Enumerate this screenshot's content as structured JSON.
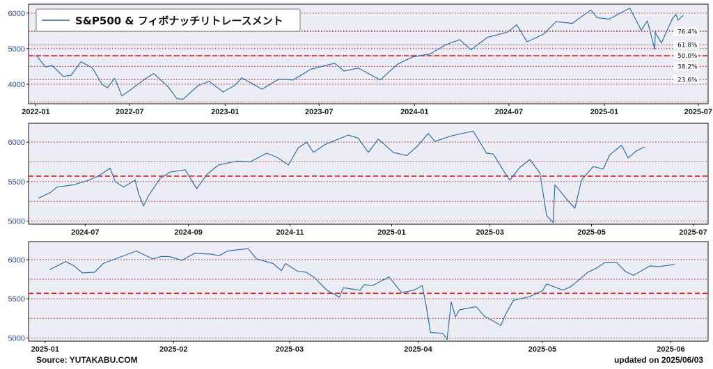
{
  "legend_label": "S&P500 & フィボナッチリトレースメント",
  "source": "Source: YUTAKABU.COM",
  "updated": "updated on 2025/06/03",
  "colors": {
    "line": "#2f6fa5",
    "plot_bg": "#ececf4",
    "fib": "#e01818",
    "tick_y": "#2a4a80"
  },
  "chart_data": [
    {
      "type": "line",
      "series": [
        {
          "name": "S&P500",
          "values": [
            {
              "x": "2022-01-03",
              "y": 4790
            },
            {
              "x": "2022-01-20",
              "y": 4480
            },
            {
              "x": "2022-02-01",
              "y": 4530
            },
            {
              "x": "2022-02-23",
              "y": 4220
            },
            {
              "x": "2022-03-10",
              "y": 4250
            },
            {
              "x": "2022-03-29",
              "y": 4630
            },
            {
              "x": "2022-04-20",
              "y": 4460
            },
            {
              "x": "2022-05-09",
              "y": 3990
            },
            {
              "x": "2022-05-19",
              "y": 3900
            },
            {
              "x": "2022-06-02",
              "y": 4170
            },
            {
              "x": "2022-06-16",
              "y": 3670
            },
            {
              "x": "2022-07-08",
              "y": 3900
            },
            {
              "x": "2022-07-29",
              "y": 4130
            },
            {
              "x": "2022-08-16",
              "y": 4300
            },
            {
              "x": "2022-09-13",
              "y": 3930
            },
            {
              "x": "2022-09-30",
              "y": 3590
            },
            {
              "x": "2022-10-12",
              "y": 3580
            },
            {
              "x": "2022-11-10",
              "y": 3960
            },
            {
              "x": "2022-12-01",
              "y": 4080
            },
            {
              "x": "2022-12-28",
              "y": 3780
            },
            {
              "x": "2023-01-20",
              "y": 3970
            },
            {
              "x": "2023-02-02",
              "y": 4180
            },
            {
              "x": "2023-03-13",
              "y": 3860
            },
            {
              "x": "2023-04-14",
              "y": 4140
            },
            {
              "x": "2023-05-12",
              "y": 4120
            },
            {
              "x": "2023-06-15",
              "y": 4420
            },
            {
              "x": "2023-07-31",
              "y": 4590
            },
            {
              "x": "2023-08-18",
              "y": 4370
            },
            {
              "x": "2023-09-15",
              "y": 4450
            },
            {
              "x": "2023-10-27",
              "y": 4120
            },
            {
              "x": "2023-11-30",
              "y": 4570
            },
            {
              "x": "2023-12-29",
              "y": 4770
            },
            {
              "x": "2024-01-31",
              "y": 4850
            },
            {
              "x": "2024-02-29",
              "y": 5100
            },
            {
              "x": "2024-03-28",
              "y": 5250
            },
            {
              "x": "2024-04-19",
              "y": 4970
            },
            {
              "x": "2024-05-21",
              "y": 5320
            },
            {
              "x": "2024-06-28",
              "y": 5460
            },
            {
              "x": "2024-07-16",
              "y": 5670
            },
            {
              "x": "2024-08-05",
              "y": 5190
            },
            {
              "x": "2024-09-06",
              "y": 5410
            },
            {
              "x": "2024-09-30",
              "y": 5760
            },
            {
              "x": "2024-10-31",
              "y": 5710
            },
            {
              "x": "2024-12-06",
              "y": 6090
            },
            {
              "x": "2024-12-18",
              "y": 5870
            },
            {
              "x": "2025-01-10",
              "y": 5830
            },
            {
              "x": "2025-02-19",
              "y": 6140
            },
            {
              "x": "2025-03-13",
              "y": 5520
            },
            {
              "x": "2025-03-25",
              "y": 5780
            },
            {
              "x": "2025-04-08",
              "y": 4980
            },
            {
              "x": "2025-04-09",
              "y": 5460
            },
            {
              "x": "2025-04-21",
              "y": 5160
            },
            {
              "x": "2025-05-12",
              "y": 5840
            },
            {
              "x": "2025-05-19",
              "y": 5960
            },
            {
              "x": "2025-05-23",
              "y": 5800
            },
            {
              "x": "2025-06-02",
              "y": 5940
            }
          ]
        }
      ],
      "x_range": [
        "2021-12-18",
        "2025-07-20"
      ],
      "ylim": [
        3450,
        6250
      ],
      "xticks": [
        "2022-01",
        "2022-07",
        "2023-01",
        "2023-07",
        "2024-01",
        "2024-07",
        "2025-01",
        "2025-07"
      ],
      "yticks": [
        4000,
        5000,
        6000
      ],
      "fib_levels": [
        {
          "label": "76.4%",
          "value": 5480
        },
        {
          "label": "61.8%",
          "value": 5105
        },
        {
          "label": "50.0%",
          "value": 4800
        },
        {
          "label": "38.2%",
          "value": 4500
        },
        {
          "label": "23.6%",
          "value": 4130
        }
      ],
      "midline": 4800,
      "grid": true,
      "legend": "top-left"
    },
    {
      "type": "line",
      "series": [
        {
          "name": "S&P500",
          "values": [
            {
              "x": "2024-06-03",
              "y": 5290
            },
            {
              "x": "2024-06-10",
              "y": 5360
            },
            {
              "x": "2024-06-14",
              "y": 5430
            },
            {
              "x": "2024-06-24",
              "y": 5460
            },
            {
              "x": "2024-07-02",
              "y": 5510
            },
            {
              "x": "2024-07-08",
              "y": 5560
            },
            {
              "x": "2024-07-16",
              "y": 5670
            },
            {
              "x": "2024-07-19",
              "y": 5500
            },
            {
              "x": "2024-07-24",
              "y": 5430
            },
            {
              "x": "2024-07-31",
              "y": 5520
            },
            {
              "x": "2024-08-02",
              "y": 5350
            },
            {
              "x": "2024-08-05",
              "y": 5190
            },
            {
              "x": "2024-08-08",
              "y": 5320
            },
            {
              "x": "2024-08-15",
              "y": 5540
            },
            {
              "x": "2024-08-21",
              "y": 5620
            },
            {
              "x": "2024-08-30",
              "y": 5650
            },
            {
              "x": "2024-09-06",
              "y": 5410
            },
            {
              "x": "2024-09-12",
              "y": 5590
            },
            {
              "x": "2024-09-19",
              "y": 5710
            },
            {
              "x": "2024-09-30",
              "y": 5760
            },
            {
              "x": "2024-10-08",
              "y": 5750
            },
            {
              "x": "2024-10-18",
              "y": 5860
            },
            {
              "x": "2024-10-24",
              "y": 5810
            },
            {
              "x": "2024-10-31",
              "y": 5710
            },
            {
              "x": "2024-11-06",
              "y": 5930
            },
            {
              "x": "2024-11-11",
              "y": 6000
            },
            {
              "x": "2024-11-15",
              "y": 5870
            },
            {
              "x": "2024-11-22",
              "y": 5970
            },
            {
              "x": "2024-12-06",
              "y": 6090
            },
            {
              "x": "2024-12-12",
              "y": 6050
            },
            {
              "x": "2024-12-18",
              "y": 5870
            },
            {
              "x": "2024-12-24",
              "y": 6040
            },
            {
              "x": "2025-01-02",
              "y": 5870
            },
            {
              "x": "2025-01-10",
              "y": 5830
            },
            {
              "x": "2025-01-16",
              "y": 5940
            },
            {
              "x": "2025-01-23",
              "y": 6110
            },
            {
              "x": "2025-01-27",
              "y": 6010
            },
            {
              "x": "2025-02-06",
              "y": 6080
            },
            {
              "x": "2025-02-19",
              "y": 6140
            },
            {
              "x": "2025-02-27",
              "y": 5860
            },
            {
              "x": "2025-03-03",
              "y": 5850
            },
            {
              "x": "2025-03-10",
              "y": 5610
            },
            {
              "x": "2025-03-13",
              "y": 5520
            },
            {
              "x": "2025-03-19",
              "y": 5680
            },
            {
              "x": "2025-03-25",
              "y": 5780
            },
            {
              "x": "2025-03-31",
              "y": 5610
            },
            {
              "x": "2025-04-04",
              "y": 5070
            },
            {
              "x": "2025-04-08",
              "y": 4980
            },
            {
              "x": "2025-04-09",
              "y": 5460
            },
            {
              "x": "2025-04-16",
              "y": 5280
            },
            {
              "x": "2025-04-21",
              "y": 5160
            },
            {
              "x": "2025-04-25",
              "y": 5520
            },
            {
              "x": "2025-05-02",
              "y": 5690
            },
            {
              "x": "2025-05-08",
              "y": 5660
            },
            {
              "x": "2025-05-12",
              "y": 5840
            },
            {
              "x": "2025-05-19",
              "y": 5960
            },
            {
              "x": "2025-05-23",
              "y": 5800
            },
            {
              "x": "2025-05-28",
              "y": 5890
            },
            {
              "x": "2025-06-02",
              "y": 5940
            }
          ]
        }
      ],
      "x_range": [
        "2024-05-28",
        "2025-07-10"
      ],
      "ylim": [
        4960,
        6240
      ],
      "xticks": [
        "2024-07",
        "2024-09",
        "2024-11",
        "2025-01",
        "2025-03",
        "2025-05",
        "2025-07"
      ],
      "yticks": [
        5000,
        5500,
        6000
      ],
      "midline": 5570,
      "grid": true
    },
    {
      "type": "line",
      "series": [
        {
          "name": "S&P500",
          "values": [
            {
              "x": "2025-01-02",
              "y": 5870
            },
            {
              "x": "2025-01-06",
              "y": 5975
            },
            {
              "x": "2025-01-08",
              "y": 5920
            },
            {
              "x": "2025-01-10",
              "y": 5830
            },
            {
              "x": "2025-01-13",
              "y": 5840
            },
            {
              "x": "2025-01-15",
              "y": 5950
            },
            {
              "x": "2025-01-17",
              "y": 5990
            },
            {
              "x": "2025-01-23",
              "y": 6110
            },
            {
              "x": "2025-01-27",
              "y": 6010
            },
            {
              "x": "2025-01-29",
              "y": 6040
            },
            {
              "x": "2025-01-31",
              "y": 6040
            },
            {
              "x": "2025-02-03",
              "y": 5990
            },
            {
              "x": "2025-02-06",
              "y": 6080
            },
            {
              "x": "2025-02-10",
              "y": 6070
            },
            {
              "x": "2025-02-12",
              "y": 6050
            },
            {
              "x": "2025-02-14",
              "y": 6110
            },
            {
              "x": "2025-02-19",
              "y": 6140
            },
            {
              "x": "2025-02-21",
              "y": 6010
            },
            {
              "x": "2025-02-25",
              "y": 5950
            },
            {
              "x": "2025-02-27",
              "y": 5860
            },
            {
              "x": "2025-02-28",
              "y": 5950
            },
            {
              "x": "2025-03-03",
              "y": 5850
            },
            {
              "x": "2025-03-05",
              "y": 5840
            },
            {
              "x": "2025-03-07",
              "y": 5770
            },
            {
              "x": "2025-03-10",
              "y": 5610
            },
            {
              "x": "2025-03-13",
              "y": 5520
            },
            {
              "x": "2025-03-14",
              "y": 5640
            },
            {
              "x": "2025-03-18",
              "y": 5610
            },
            {
              "x": "2025-03-19",
              "y": 5680
            },
            {
              "x": "2025-03-21",
              "y": 5670
            },
            {
              "x": "2025-03-25",
              "y": 5780
            },
            {
              "x": "2025-03-28",
              "y": 5580
            },
            {
              "x": "2025-03-31",
              "y": 5610
            },
            {
              "x": "2025-04-02",
              "y": 5670
            },
            {
              "x": "2025-04-03",
              "y": 5400
            },
            {
              "x": "2025-04-04",
              "y": 5070
            },
            {
              "x": "2025-04-07",
              "y": 5060
            },
            {
              "x": "2025-04-08",
              "y": 4980
            },
            {
              "x": "2025-04-09",
              "y": 5460
            },
            {
              "x": "2025-04-10",
              "y": 5270
            },
            {
              "x": "2025-04-11",
              "y": 5360
            },
            {
              "x": "2025-04-15",
              "y": 5400
            },
            {
              "x": "2025-04-17",
              "y": 5280
            },
            {
              "x": "2025-04-21",
              "y": 5160
            },
            {
              "x": "2025-04-22",
              "y": 5290
            },
            {
              "x": "2025-04-24",
              "y": 5480
            },
            {
              "x": "2025-04-28",
              "y": 5530
            },
            {
              "x": "2025-05-01",
              "y": 5600
            },
            {
              "x": "2025-05-02",
              "y": 5690
            },
            {
              "x": "2025-05-06",
              "y": 5610
            },
            {
              "x": "2025-05-08",
              "y": 5660
            },
            {
              "x": "2025-05-12",
              "y": 5840
            },
            {
              "x": "2025-05-14",
              "y": 5890
            },
            {
              "x": "2025-05-16",
              "y": 5960
            },
            {
              "x": "2025-05-19",
              "y": 5960
            },
            {
              "x": "2025-05-21",
              "y": 5850
            },
            {
              "x": "2025-05-23",
              "y": 5800
            },
            {
              "x": "2025-05-27",
              "y": 5920
            },
            {
              "x": "2025-05-29",
              "y": 5910
            },
            {
              "x": "2025-06-02",
              "y": 5940
            }
          ]
        }
      ],
      "x_range": [
        "2024-12-28",
        "2025-06-10"
      ],
      "ylim": [
        4960,
        6230
      ],
      "xticks": [
        "2025-01",
        "2025-02",
        "2025-03",
        "2025-04",
        "2025-05",
        "2025-06"
      ],
      "yticks": [
        5000,
        5500,
        6000
      ],
      "midline": 5570,
      "grid": true
    }
  ]
}
